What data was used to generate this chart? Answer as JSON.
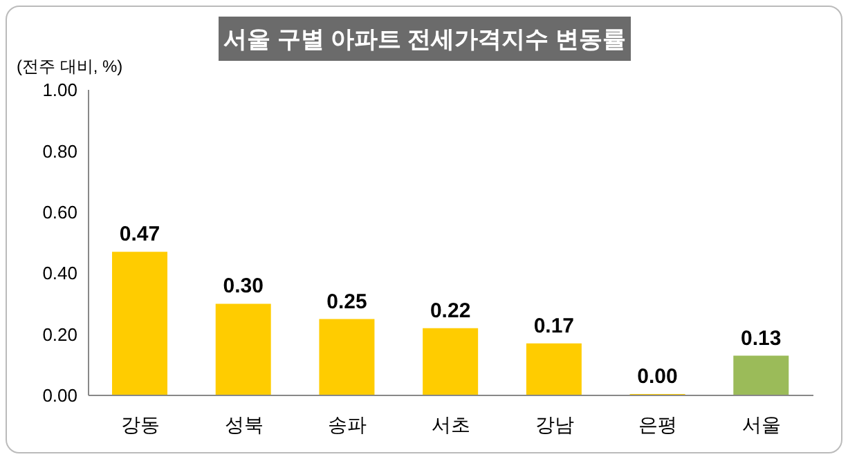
{
  "chart_data": {
    "type": "bar",
    "title": "서울 구별 아파트 전세가격지수 변동률",
    "ylabel": "(전주 대비, %)",
    "categories": [
      "강동",
      "성북",
      "송파",
      "서초",
      "강남",
      "은평",
      "서울"
    ],
    "values": [
      0.47,
      0.3,
      0.25,
      0.22,
      0.17,
      0.0,
      0.13
    ],
    "colors": [
      "#ffcc00",
      "#ffcc00",
      "#ffcc00",
      "#ffcc00",
      "#ffcc00",
      "#ffcc00",
      "#9bbb59"
    ],
    "value_labels": [
      "0.47",
      "0.30",
      "0.25",
      "0.22",
      "0.17",
      "0.00",
      "0.13"
    ],
    "ylim": [
      0,
      1
    ],
    "yticks": [
      {
        "value": 0,
        "label": "0.00"
      },
      {
        "value": 0.2,
        "label": "0.20"
      },
      {
        "value": 0.4,
        "label": "0.40"
      },
      {
        "value": 0.6,
        "label": "0.60"
      },
      {
        "value": 0.8,
        "label": "0.80"
      },
      {
        "value": 1,
        "label": "1.00"
      }
    ],
    "grid": false,
    "legend": false
  }
}
